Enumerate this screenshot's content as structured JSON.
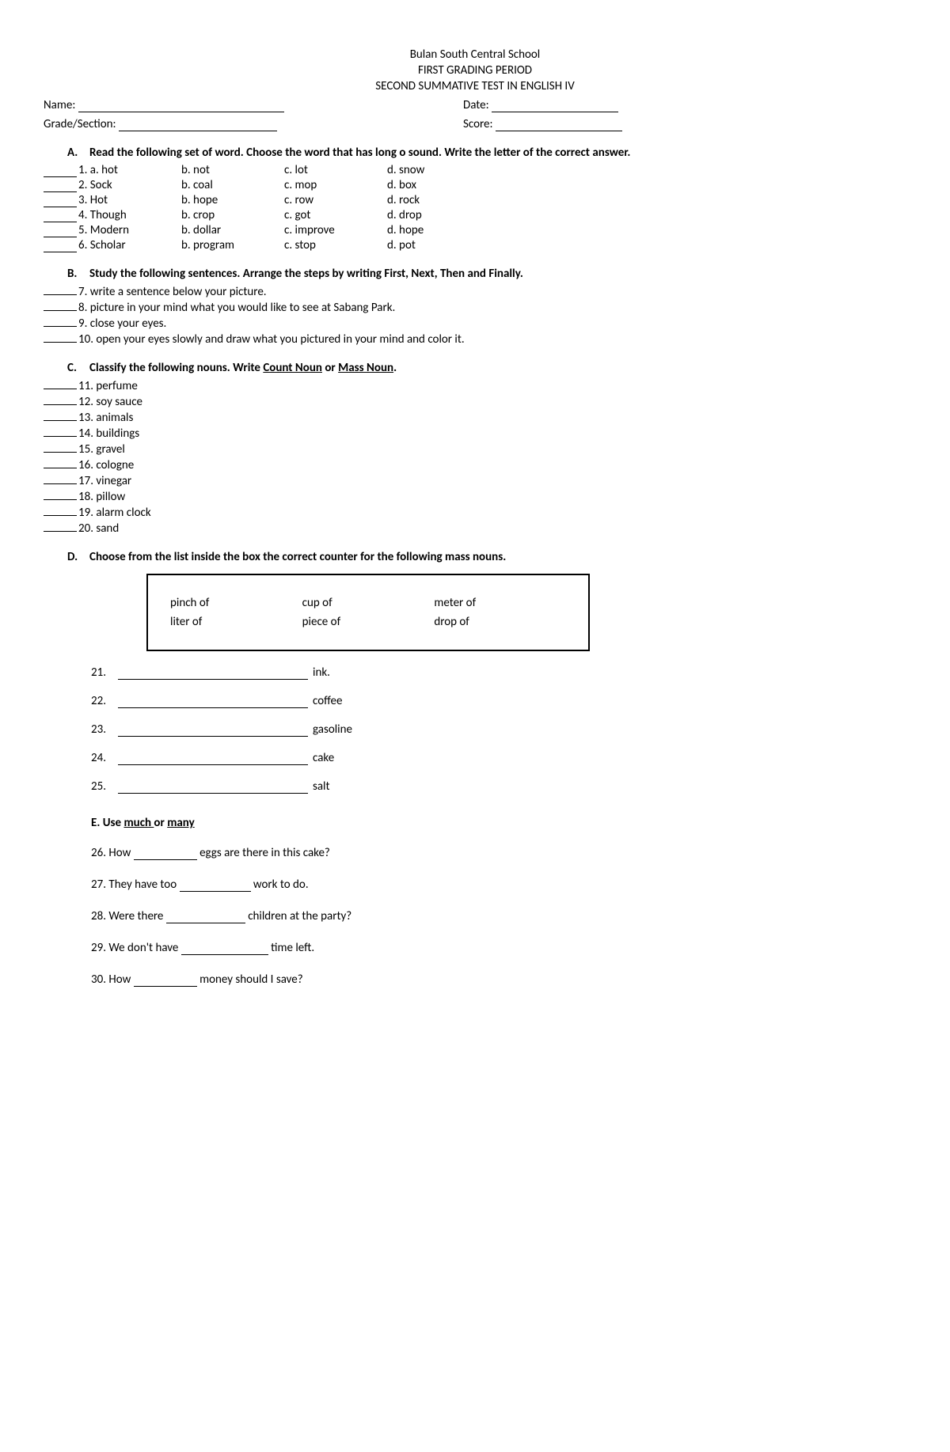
{
  "header": {
    "school": "Bulan South Central School",
    "period": "FIRST GRADING PERIOD",
    "test": "SECOND SUMMATIVE TEST IN ENGLISH IV"
  },
  "info": {
    "name_label": "Name:",
    "date_label": "Date:",
    "grade_label": "Grade/Section:",
    "score_label": "Score:"
  },
  "sectionA": {
    "letter": "A.",
    "instruction": "Read the following set of word. Choose the word that has long o sound. Write the letter of the correct answer.",
    "rows": [
      {
        "n": "1.",
        "a": "a. hot",
        "b": "b. not",
        "c": "c. lot",
        "d": "d. snow"
      },
      {
        "n": "2.",
        "a": "Sock",
        "b": "b. coal",
        "c": "c. mop",
        "d": "d. box"
      },
      {
        "n": "3.",
        "a": "Hot",
        "b": "b. hope",
        "c": "c. row",
        "d": "d. rock"
      },
      {
        "n": "4.",
        "a": "Though",
        "b": "b. crop",
        "c": "c. got",
        "d": "d. drop"
      },
      {
        "n": "5.",
        "a": "Modern",
        "b": "b. dollar",
        "c": "c. improve",
        "d": "d. hope"
      },
      {
        "n": "6.",
        "a": "Scholar",
        "b": "b. program",
        "c": "c. stop",
        "d": "d. pot"
      }
    ]
  },
  "sectionB": {
    "letter": "B.",
    "instruction": "Study the following sentences. Arrange the steps by writing First, Next, Then and Finally.",
    "items": [
      {
        "n": "7.",
        "t": "write a sentence below your picture."
      },
      {
        "n": "8.",
        "t": "picture in your mind what you would like to see at  Sabang  Park."
      },
      {
        "n": "9.",
        "t": "close your eyes."
      },
      {
        "n": "10.",
        "t": "open your eyes slowly and draw what you pictured in your mind and color it."
      }
    ]
  },
  "sectionC": {
    "letter": "C.",
    "instruction_pre": "Classify the following nouns. Write ",
    "count_noun": "Count Noun",
    "or": " or ",
    "mass_noun": "Mass Noun",
    "period": ".",
    "items": [
      {
        "n": "11.",
        "t": "perfume"
      },
      {
        "n": "12.",
        "t": "soy sauce"
      },
      {
        "n": "13.",
        "t": "animals"
      },
      {
        "n": "14.",
        "t": "buildings"
      },
      {
        "n": "15.",
        "t": "gravel"
      },
      {
        "n": "16.",
        "t": "cologne"
      },
      {
        "n": "17.",
        "t": "vinegar"
      },
      {
        "n": "18.",
        "t": "pillow"
      },
      {
        "n": "19.",
        "t": "alarm clock"
      },
      {
        "n": "20.",
        "t": "sand"
      }
    ]
  },
  "sectionD": {
    "letter": "D.",
    "instruction": "Choose from the list inside the box the correct counter for the following mass nouns.",
    "box": {
      "row1": [
        "pinch of",
        "cup of",
        "meter of"
      ],
      "row2": [
        "liter of",
        "piece of",
        "drop of"
      ]
    },
    "items": [
      {
        "n": "21.",
        "t": "ink."
      },
      {
        "n": "22.",
        "t": "coffee"
      },
      {
        "n": "23.",
        "t": "gasoline"
      },
      {
        "n": "24.",
        "t": "cake"
      },
      {
        "n": "25.",
        "t": "salt"
      }
    ]
  },
  "sectionE": {
    "head_pre": "E. Use ",
    "much": "much ",
    "or": "or ",
    "many": "many",
    "items": [
      {
        "n": "26.",
        "pre": "How ",
        "post": " eggs  are there in this cake?",
        "bw": 80
      },
      {
        "n": "27.",
        "pre": "They have too ",
        "post": " work to do.",
        "bw": 90
      },
      {
        "n": "28.",
        "pre": "Were there ",
        "post": " children at the party?",
        "bw": 100
      },
      {
        "n": "29.",
        "pre": "We don't have ",
        "post": " time left.",
        "bw": 110
      },
      {
        "n": "30.",
        "pre": "How ",
        "post": " money should I save?",
        "bw": 80
      }
    ]
  }
}
